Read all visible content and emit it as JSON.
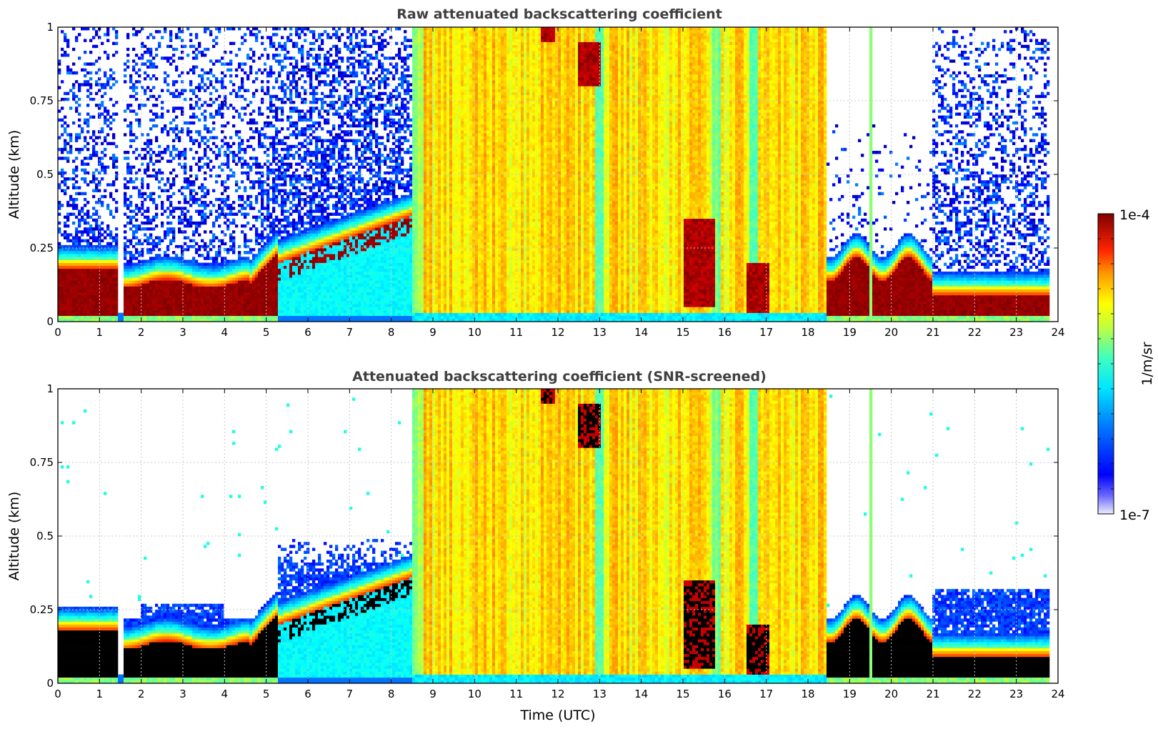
{
  "chart_data": [
    {
      "type": "heatmap",
      "title": "Raw attenuated backscattering coefficient",
      "xlabel": "",
      "ylabel": "Altitude (km)",
      "xlim": [
        0,
        24
      ],
      "ylim": [
        0,
        1
      ],
      "xticks": [
        "0",
        "1",
        "2",
        "3",
        "4",
        "5",
        "6",
        "7",
        "8",
        "9",
        "10",
        "11",
        "12",
        "13",
        "14",
        "15",
        "16",
        "17",
        "18",
        "19",
        "20",
        "21",
        "22",
        "23",
        "24"
      ],
      "yticks": [
        "0",
        "0.25",
        "0.5",
        "0.75",
        "1"
      ],
      "grid": true,
      "screened": false,
      "regions": [
        {
          "x": [
            0,
            1.4
          ],
          "kind": "fog",
          "top_km": 0.18
        },
        {
          "x": [
            1.65,
            4.6
          ],
          "kind": "fog",
          "top_km": 0.14
        },
        {
          "x": [
            4.6,
            5.3
          ],
          "kind": "rising-fog",
          "top_km": 0.2
        },
        {
          "x": [
            5.3,
            8.5
          ],
          "kind": "aerosol",
          "top_km": 0.35
        },
        {
          "x": [
            8.5,
            18.45
          ],
          "kind": "low-cloud",
          "top_km": 1.0
        },
        {
          "x": [
            18.45,
            21.0
          ],
          "kind": "fog",
          "top_km": 0.2
        },
        {
          "x": [
            21.0,
            23.8
          ],
          "kind": "fog",
          "top_km": 0.1
        }
      ],
      "dense_patches": [
        {
          "x": [
            11.6,
            11.9
          ],
          "y": [
            0.95,
            1.0
          ]
        },
        {
          "x": [
            12.5,
            13.0
          ],
          "y": [
            0.8,
            0.95
          ]
        },
        {
          "x": [
            15.0,
            15.8
          ],
          "y": [
            0.05,
            0.35
          ]
        },
        {
          "x": [
            16.5,
            17.1
          ],
          "y": [
            0.03,
            0.2
          ]
        }
      ]
    },
    {
      "type": "heatmap",
      "title": "Attenuated backscattering coefficient (SNR-screened)",
      "xlabel": "Time (UTC)",
      "ylabel": "Altitude (km)",
      "xlim": [
        0,
        24
      ],
      "ylim": [
        0,
        1
      ],
      "xticks": [
        "0",
        "1",
        "2",
        "3",
        "4",
        "5",
        "6",
        "7",
        "8",
        "9",
        "10",
        "11",
        "12",
        "13",
        "14",
        "15",
        "16",
        "17",
        "18",
        "19",
        "20",
        "21",
        "22",
        "23",
        "24"
      ],
      "yticks": [
        "0",
        "0.25",
        "0.5",
        "0.75",
        "1"
      ],
      "grid": true,
      "screened": true,
      "saturated_color": "#000000"
    }
  ],
  "colorbar": {
    "label": "1/m/sr",
    "max_label": "1e-4",
    "min_label": "1e-7",
    "scale": "log",
    "range": [
      1e-07,
      0.0001
    ],
    "colormap": "jet"
  }
}
